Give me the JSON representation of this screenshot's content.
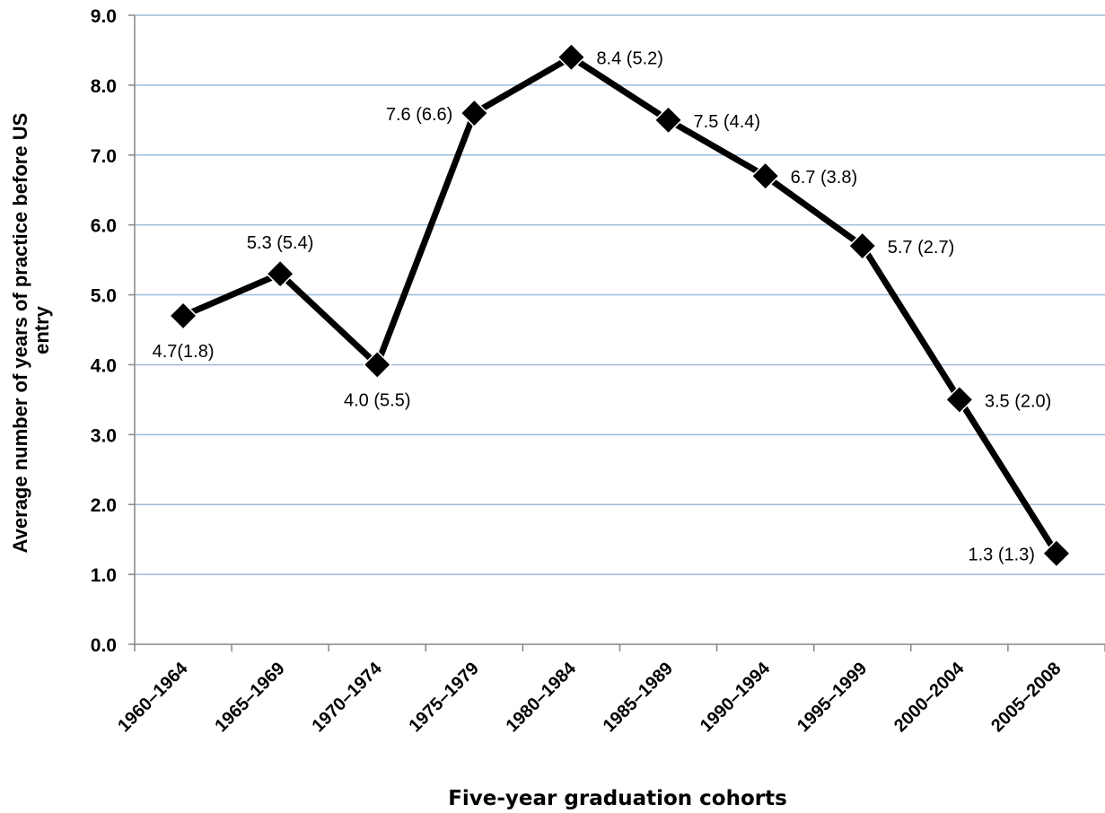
{
  "chart_data": {
    "type": "line",
    "title": "",
    "xlabel": "Five-year graduation cohorts",
    "ylabel_lines": [
      "Average number of years of practice before US",
      "entry"
    ],
    "ylim": [
      0,
      9
    ],
    "yticks": [
      "0.0",
      "1.0",
      "2.0",
      "3.0",
      "4.0",
      "5.0",
      "6.0",
      "7.0",
      "8.0",
      "9.0"
    ],
    "grid": true,
    "legend": "none",
    "categories": [
      "1960–1964",
      "1965–1969",
      "1970–1974",
      "1975–1979",
      "1980–1984",
      "1985–1989",
      "1990–1994",
      "1995–1999",
      "2000–2004",
      "2005–2008"
    ],
    "series": [
      {
        "values": [
          4.7,
          5.3,
          4.0,
          7.6,
          8.4,
          7.5,
          6.7,
          5.7,
          3.5,
          1.3
        ],
        "labels": [
          "4.7(1.8)",
          "5.3 (5.4)",
          "4.0 (5.5)",
          "7.6 (6.6)",
          "8.4 (5.2)",
          "7.5 (4.4)",
          "6.7 (3.8)",
          "5.7 (2.7)",
          "3.5 (2.0)",
          "1.3 (1.3)"
        ],
        "label_positions": [
          "below",
          "above",
          "below",
          "left",
          "right",
          "right",
          "right",
          "right",
          "right",
          "left"
        ]
      }
    ],
    "colors": {
      "line": "#000000",
      "grid": "#9bbbd8",
      "axis": "#868686"
    }
  }
}
